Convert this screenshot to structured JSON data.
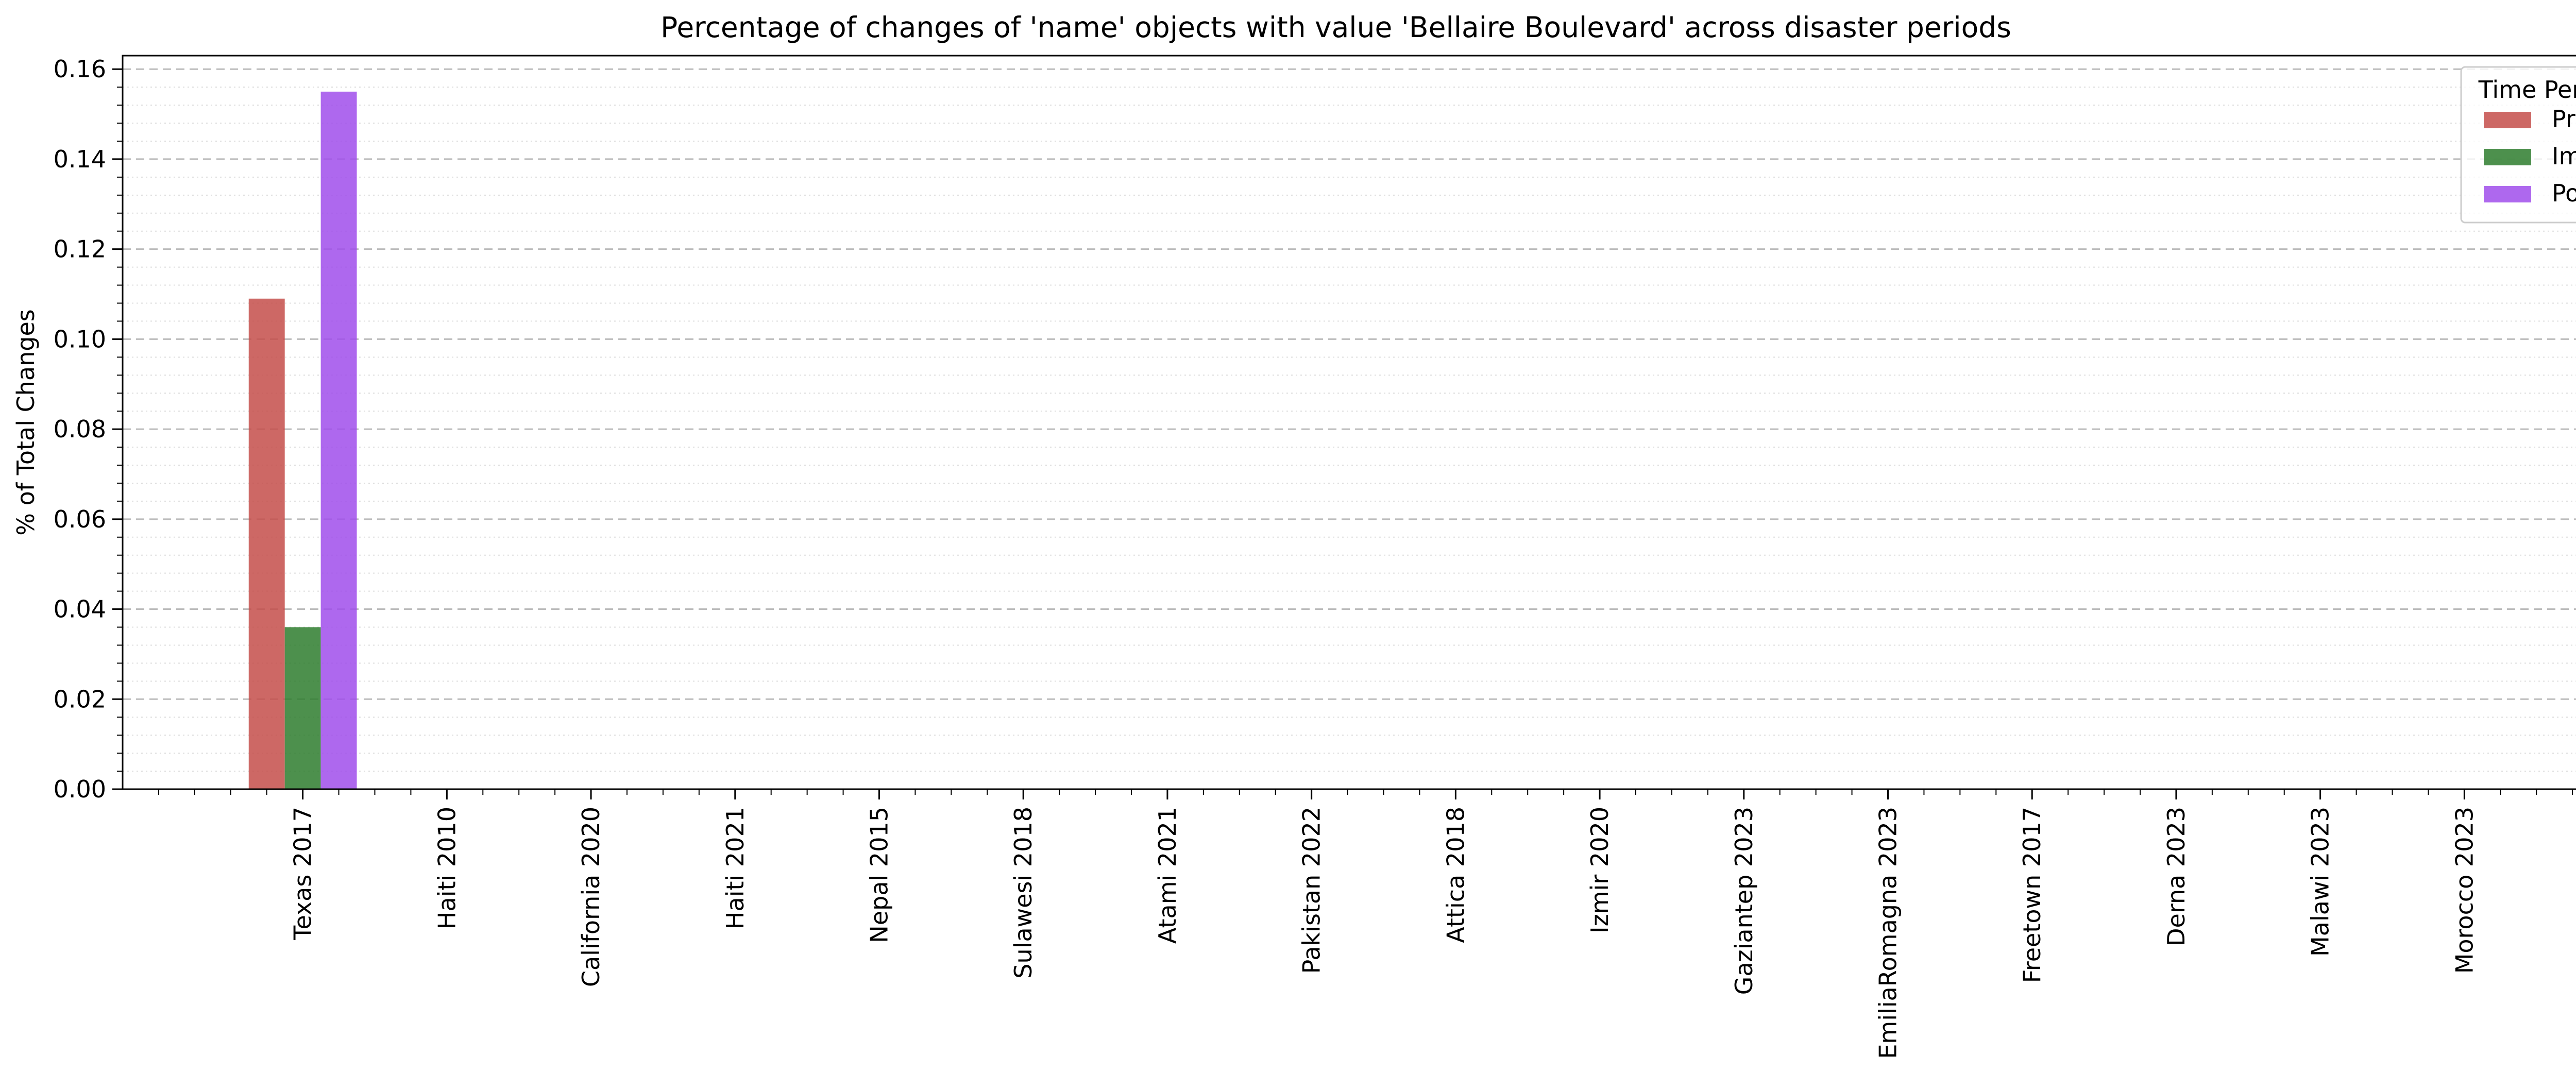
{
  "chart_data": {
    "type": "bar",
    "title": "Percentage of changes of 'name' objects with value 'Bellaire Boulevard' across disaster periods",
    "xlabel": "",
    "ylabel": "% of Total Changes",
    "ylim": [
      0,
      0.163
    ],
    "yticks": [
      "0.00",
      "0.02",
      "0.04",
      "0.06",
      "0.08",
      "0.10",
      "0.12",
      "0.14",
      "0.16"
    ],
    "grid": true,
    "legend": {
      "title": "Time Period",
      "placement": "top-right"
    },
    "categories": [
      "Texas 2017",
      "Haiti 2010",
      "California 2020",
      "Haiti 2021",
      "Nepal 2015",
      "Sulawesi 2018",
      "Atami 2021",
      "Pakistan 2022",
      "Attica 2018",
      "Izmir 2020",
      "Gaziantep 2023",
      "EmiliaRomagna 2023",
      "Freetown 2017",
      "Derna 2023",
      "Malawi 2023",
      "Morocco 2023"
    ],
    "series": [
      {
        "name": "Pre",
        "color": "#c44e4a",
        "values": [
          0.109,
          0,
          0,
          0,
          0,
          0,
          0,
          0,
          0,
          0,
          0,
          0,
          0,
          0,
          0,
          0
        ]
      },
      {
        "name": "Imm",
        "color": "#2e7d2e",
        "values": [
          0.036,
          0,
          0,
          0,
          0,
          0,
          0,
          0,
          0,
          0,
          0,
          0,
          0,
          0,
          0,
          0
        ]
      },
      {
        "name": "Post",
        "color": "#a04deb",
        "values": [
          0.155,
          0,
          0,
          0,
          0,
          0,
          0,
          0,
          0,
          0,
          0,
          0,
          0,
          0,
          0,
          0
        ]
      }
    ]
  }
}
